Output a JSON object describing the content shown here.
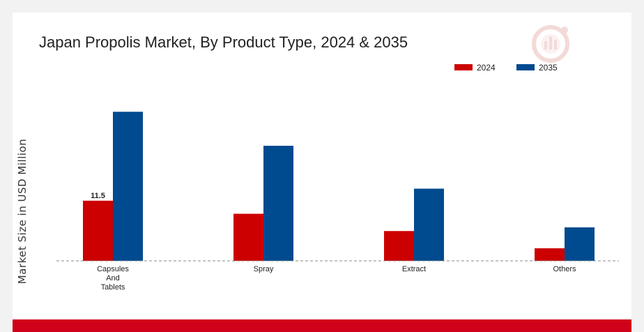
{
  "chart_data": {
    "type": "bar",
    "title": "Japan Propolis Market, By Product Type, 2024 & 2035",
    "xlabel": "",
    "ylabel": "Market Size in USD Million",
    "categories": [
      [
        "Capsules",
        "And",
        "Tablets"
      ],
      [
        "Spray"
      ],
      [
        "Extract"
      ],
      [
        "Others"
      ]
    ],
    "series": [
      {
        "name": "2024",
        "color": "#cc0000",
        "values": [
          11.5,
          9.0,
          5.7,
          2.4
        ]
      },
      {
        "name": "2035",
        "color": "#004a8f",
        "values": [
          28.5,
          22.0,
          13.8,
          6.4
        ]
      }
    ],
    "data_labels": [
      {
        "series": 0,
        "index": 0,
        "text": "11.5"
      }
    ],
    "ylim": [
      0,
      40
    ],
    "grid": false,
    "legend_position": "top-right",
    "baseline": "dashed"
  },
  "colors": {
    "accent": "#d0021b",
    "background": "#f2f2f2",
    "card": "#ffffff"
  },
  "watermark_icon": "logo-icon"
}
